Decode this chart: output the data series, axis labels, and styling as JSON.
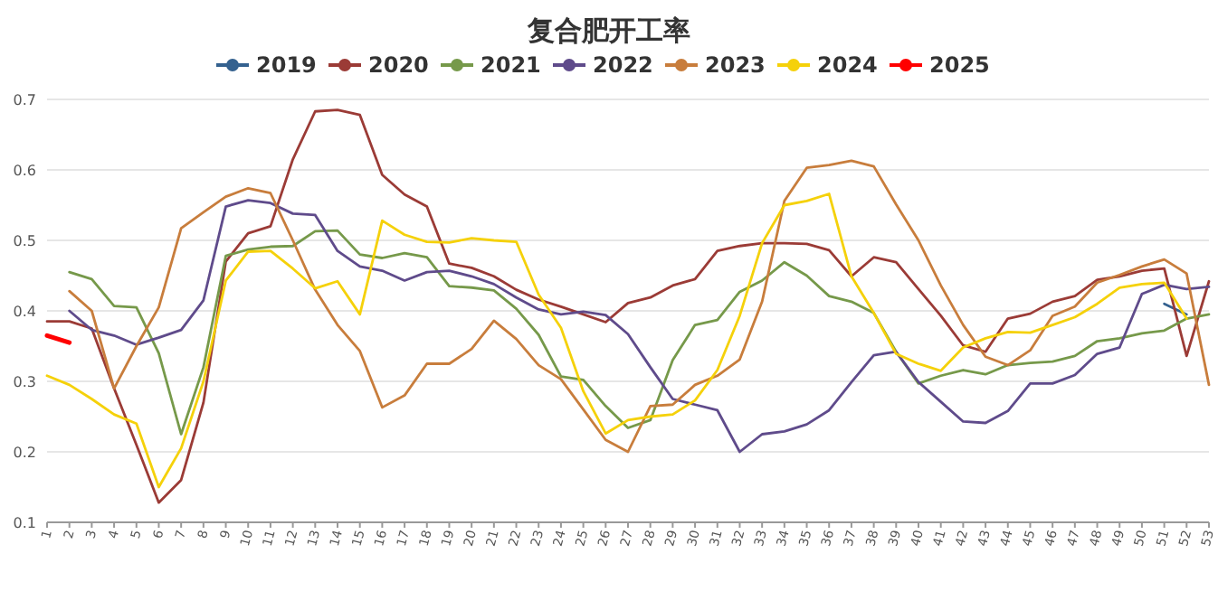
{
  "chart_data": {
    "type": "line",
    "title": "复合肥开工率",
    "categories": [
      "1",
      "2",
      "3",
      "4",
      "5",
      "6",
      "7",
      "8",
      "9",
      "10",
      "11",
      "12",
      "13",
      "14",
      "15",
      "16",
      "17",
      "18",
      "19",
      "20",
      "21",
      "22",
      "23",
      "24",
      "25",
      "26",
      "27",
      "28",
      "29",
      "30",
      "31",
      "32",
      "33",
      "34",
      "35",
      "36",
      "37",
      "38",
      "39",
      "40",
      "41",
      "42",
      "43",
      "44",
      "45",
      "46",
      "47",
      "48",
      "49",
      "50",
      "51",
      "52",
      "53"
    ],
    "series": [
      {
        "name": "2019",
        "color": "#34618f",
        "values": [
          null,
          null,
          null,
          null,
          null,
          null,
          null,
          null,
          null,
          null,
          null,
          null,
          null,
          null,
          null,
          null,
          null,
          null,
          null,
          null,
          null,
          null,
          null,
          null,
          null,
          null,
          null,
          null,
          null,
          null,
          null,
          null,
          null,
          null,
          null,
          null,
          null,
          null,
          null,
          null,
          null,
          null,
          null,
          null,
          null,
          null,
          null,
          null,
          null,
          null,
          0.41,
          0.395,
          null
        ]
      },
      {
        "name": "2020",
        "color": "#9b3b36",
        "values": [
          0.385,
          0.385,
          0.375,
          0.29,
          0.21,
          0.128,
          0.16,
          0.27,
          0.47,
          0.51,
          0.52,
          0.615,
          0.683,
          0.685,
          0.678,
          0.593,
          0.565,
          0.548,
          0.467,
          0.461,
          0.449,
          0.43,
          0.416,
          0.406,
          0.395,
          0.384,
          0.411,
          0.419,
          0.436,
          0.445,
          0.485,
          0.492,
          0.496,
          0.496,
          0.495,
          0.486,
          0.449,
          0.476,
          0.469,
          0.431,
          0.393,
          0.351,
          0.342,
          0.389,
          0.396,
          0.413,
          0.421,
          0.444,
          0.449,
          0.457,
          0.46,
          0.336,
          0.442
        ]
      },
      {
        "name": "2021",
        "color": "#76994a",
        "values": [
          null,
          0.455,
          0.445,
          0.407,
          0.405,
          0.34,
          0.225,
          0.32,
          0.478,
          0.487,
          0.491,
          0.492,
          0.513,
          0.514,
          0.48,
          0.475,
          0.482,
          0.476,
          0.435,
          0.433,
          0.429,
          0.403,
          0.366,
          0.307,
          0.302,
          0.265,
          0.234,
          0.245,
          0.33,
          0.38,
          0.387,
          0.427,
          0.443,
          0.469,
          0.45,
          0.421,
          0.413,
          0.397,
          0.342,
          0.297,
          0.308,
          0.316,
          0.31,
          0.323,
          0.326,
          0.328,
          0.336,
          0.357,
          0.361,
          0.368,
          0.372,
          0.389,
          0.395
        ]
      },
      {
        "name": "2022",
        "color": "#5f4b8b",
        "values": [
          null,
          0.4,
          0.373,
          0.365,
          0.352,
          0.362,
          0.373,
          0.415,
          0.548,
          0.557,
          0.553,
          0.538,
          0.536,
          0.485,
          0.463,
          0.457,
          0.443,
          0.455,
          0.457,
          0.449,
          0.438,
          0.419,
          0.402,
          0.395,
          0.399,
          0.394,
          0.367,
          0.32,
          0.275,
          0.267,
          0.259,
          0.2,
          0.225,
          0.229,
          0.239,
          0.259,
          0.299,
          0.337,
          0.342,
          0.299,
          0.271,
          0.243,
          0.241,
          0.258,
          0.297,
          0.297,
          0.309,
          0.339,
          0.348,
          0.424,
          0.437,
          0.431,
          0.434
        ]
      },
      {
        "name": "2023",
        "color": "#c87d3c",
        "values": [
          null,
          0.428,
          0.4,
          0.29,
          0.35,
          0.405,
          0.517,
          0.54,
          0.562,
          0.574,
          0.567,
          0.5,
          0.43,
          0.38,
          0.343,
          0.263,
          0.28,
          0.325,
          0.325,
          0.346,
          0.386,
          0.36,
          0.323,
          0.303,
          0.26,
          0.217,
          0.2,
          0.265,
          0.267,
          0.295,
          0.308,
          0.331,
          0.413,
          0.556,
          0.603,
          0.607,
          0.613,
          0.605,
          0.551,
          0.5,
          0.436,
          0.38,
          0.335,
          0.323,
          0.344,
          0.393,
          0.406,
          0.44,
          0.451,
          0.463,
          0.473,
          0.453,
          0.295
        ]
      },
      {
        "name": "2024",
        "color": "#f5d10a",
        "values": [
          0.308,
          0.295,
          0.275,
          0.253,
          0.24,
          0.15,
          0.205,
          0.3,
          0.443,
          0.484,
          0.485,
          0.46,
          0.432,
          0.442,
          0.395,
          0.528,
          0.508,
          0.498,
          0.497,
          0.503,
          0.5,
          0.498,
          0.423,
          0.376,
          0.286,
          0.226,
          0.245,
          0.25,
          0.253,
          0.273,
          0.316,
          0.393,
          0.496,
          0.55,
          0.556,
          0.566,
          0.449,
          0.397,
          0.339,
          0.325,
          0.315,
          0.348,
          0.361,
          0.37,
          0.369,
          0.38,
          0.391,
          0.41,
          0.433,
          0.438,
          0.44,
          0.389,
          null
        ]
      },
      {
        "name": "2025",
        "color": "#ff0000",
        "values": [
          0.365,
          0.355,
          null,
          null,
          null,
          null,
          null,
          null,
          null,
          null,
          null,
          null,
          null,
          null,
          null,
          null,
          null,
          null,
          null,
          null,
          null,
          null,
          null,
          null,
          null,
          null,
          null,
          null,
          null,
          null,
          null,
          null,
          null,
          null,
          null,
          null,
          null,
          null,
          null,
          null,
          null,
          null,
          null,
          null,
          null,
          null,
          null,
          null,
          null,
          null,
          null,
          null,
          null
        ]
      }
    ],
    "ylim": [
      0.1,
      0.7
    ],
    "yticks": [
      0.1,
      0.2,
      0.3,
      0.4,
      0.5,
      0.6,
      0.7
    ],
    "grid": "y",
    "legend": "top"
  }
}
